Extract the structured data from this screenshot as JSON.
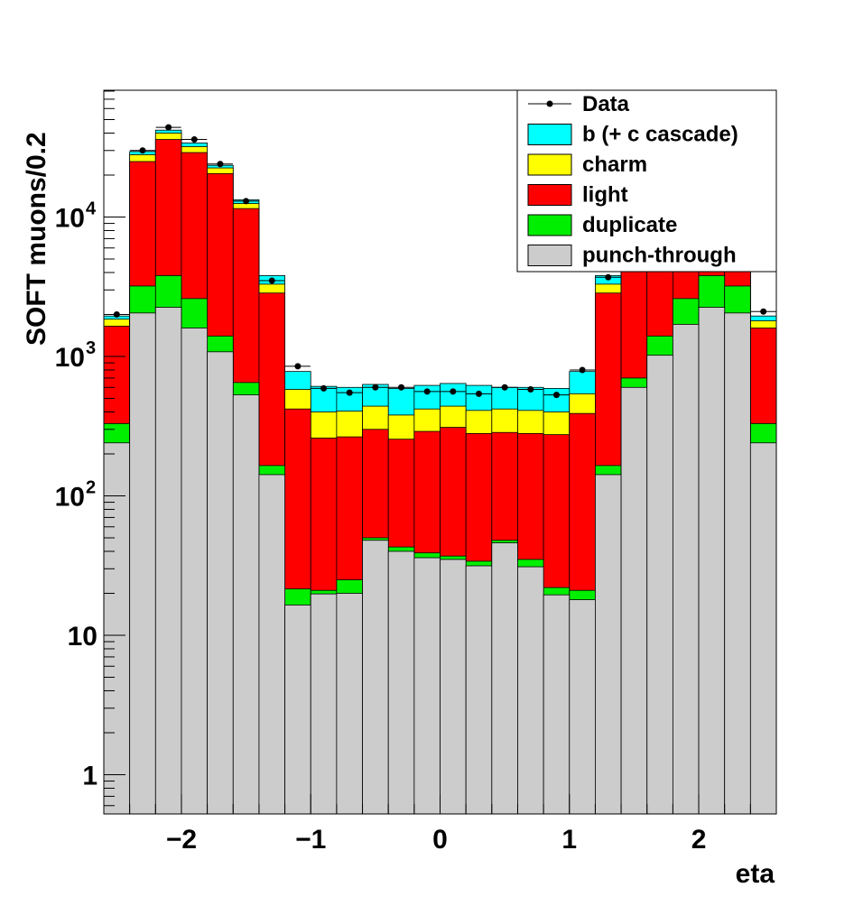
{
  "chart_data": {
    "type": "bar",
    "stacked": true,
    "yscale": "log",
    "xlabel": "eta",
    "ylabel": "SOFT muons/0.2",
    "xlim": [
      -2.6,
      2.6
    ],
    "ylim": [
      0.5,
      80000
    ],
    "x_ticks": [
      {
        "v": -2,
        "label": "−2"
      },
      {
        "v": -1,
        "label": "−1"
      },
      {
        "v": 0,
        "label": "0"
      },
      {
        "v": 1,
        "label": "1"
      },
      {
        "v": 2,
        "label": "2"
      }
    ],
    "y_ticks": [
      {
        "v": 1,
        "label": "1"
      },
      {
        "v": 10,
        "label": "10"
      },
      {
        "v": 100,
        "base": "10",
        "exp": "2"
      },
      {
        "v": 1000,
        "base": "10",
        "exp": "3"
      },
      {
        "v": 10000,
        "base": "10",
        "exp": "4"
      }
    ],
    "bin_edges": [
      -2.6,
      -2.4,
      -2.2,
      -2.0,
      -1.8,
      -1.6,
      -1.4,
      -1.2,
      -1.0,
      -0.8,
      -0.6,
      -0.4,
      -0.2,
      0.0,
      0.2,
      0.4,
      0.6,
      0.8,
      1.0,
      1.2,
      1.4,
      1.6,
      1.8,
      2.0,
      2.2,
      2.4,
      2.6
    ],
    "series": [
      {
        "name": "punch-through",
        "color": "#cccccc",
        "values": [
          240,
          2050,
          2250,
          1600,
          1080,
          530,
          142,
          16.5,
          19.8,
          20,
          48,
          40,
          36,
          35,
          31.5,
          46,
          31,
          19.5,
          18,
          142,
          600,
          1020,
          1700,
          2250,
          2050,
          240
        ]
      },
      {
        "name": "duplicate",
        "color": "#00ee00",
        "values": [
          330,
          3200,
          3800,
          2600,
          1400,
          650,
          165,
          21.5,
          21,
          25,
          50,
          43,
          39,
          37,
          34,
          48,
          35,
          22,
          21,
          165,
          700,
          1400,
          2600,
          3800,
          3200,
          330
        ]
      },
      {
        "name": "light",
        "color": "#ff0000",
        "values": [
          1650,
          25000,
          36000,
          29000,
          20500,
          11500,
          2850,
          420,
          260,
          265,
          300,
          255,
          290,
          310,
          280,
          285,
          280,
          275,
          390,
          2850,
          11500,
          20500,
          29000,
          36000,
          25000,
          1600
        ]
      },
      {
        "name": "charm",
        "color": "#ffff00",
        "values": [
          1850,
          28000,
          40000,
          32000,
          22500,
          12500,
          3300,
          580,
          400,
          405,
          440,
          380,
          420,
          440,
          410,
          420,
          410,
          400,
          540,
          3300,
          12500,
          22500,
          32000,
          40000,
          28000,
          1800
        ]
      },
      {
        "name": "b (+ c cascade)",
        "color": "#00ffff",
        "values": [
          1950,
          29500,
          42000,
          34000,
          23500,
          13300,
          3800,
          780,
          610,
          600,
          630,
          590,
          620,
          640,
          620,
          600,
          600,
          590,
          780,
          3800,
          13300,
          23500,
          34000,
          42000,
          29500,
          1950
        ]
      }
    ],
    "data_series": {
      "name": "Data",
      "x": [
        -2.5,
        -2.3,
        -2.1,
        -1.9,
        -1.7,
        -1.5,
        -1.3,
        -1.1,
        -0.9,
        -0.7,
        -0.5,
        -0.3,
        -0.1,
        0.1,
        0.3,
        0.5,
        0.7,
        0.9,
        1.1,
        1.3,
        2.5
      ],
      "y": [
        2000,
        30000,
        44000,
        36000,
        24000,
        13000,
        3500,
        850,
        590,
        550,
        600,
        600,
        560,
        560,
        540,
        600,
        580,
        530,
        800,
        3700,
        2100
      ]
    },
    "legend": {
      "position": "top-right",
      "entries": [
        {
          "label": "Data",
          "kind": "marker"
        },
        {
          "label": "b (+ c cascade)",
          "color": "#00ffff"
        },
        {
          "label": "charm",
          "color": "#ffff00"
        },
        {
          "label": "light",
          "color": "#ff0000"
        },
        {
          "label": "duplicate",
          "color": "#00ee00"
        },
        {
          "label": "punch-through",
          "color": "#cccccc"
        }
      ]
    }
  }
}
